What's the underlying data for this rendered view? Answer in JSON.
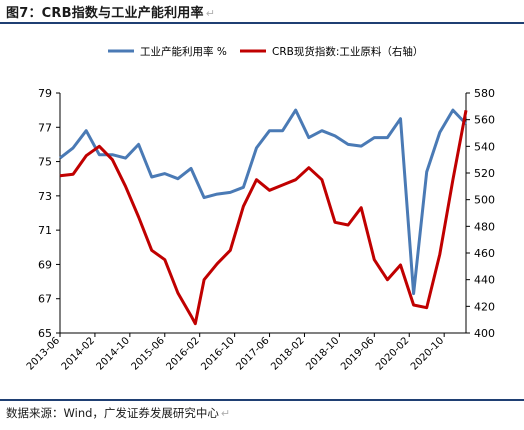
{
  "header": {
    "title": "图7：CRB指数与工业产能利用率",
    "return_mark": "↵"
  },
  "footer": {
    "source": "数据来源：Wind，广发证券发展研究中心",
    "return_mark": "↵"
  },
  "colors": {
    "series_left": "#4a7ab5",
    "series_right": "#c00000",
    "rule": "#1f3f73"
  },
  "chart_data": {
    "type": "line",
    "legend_placement": "top",
    "grid": false,
    "x_tick_labels": [
      "2013-06",
      "2014-02",
      "2014-10",
      "2015-06",
      "2016-02",
      "2016-10",
      "2017-06",
      "2018-02",
      "2018-10",
      "2019-06",
      "2020-02",
      "2020-10"
    ],
    "y_left": {
      "ylim": [
        65,
        79
      ],
      "ticks": [
        65,
        67,
        69,
        71,
        73,
        75,
        77,
        79
      ]
    },
    "y_right": {
      "ylim": [
        400,
        580
      ],
      "ticks": [
        400,
        420,
        440,
        460,
        480,
        500,
        520,
        540,
        560,
        580
      ]
    },
    "series": [
      {
        "name": "工业产能利用率 %",
        "axis": "left",
        "x": [
          "2013-06",
          "2013-09",
          "2013-12",
          "2014-03",
          "2014-06",
          "2014-09",
          "2014-12",
          "2015-03",
          "2015-06",
          "2015-09",
          "2015-12",
          "2016-03",
          "2016-06",
          "2016-09",
          "2016-12",
          "2017-03",
          "2017-06",
          "2017-09",
          "2017-12",
          "2018-03",
          "2018-06",
          "2018-09",
          "2018-12",
          "2019-03",
          "2019-06",
          "2019-09",
          "2019-12",
          "2020-03",
          "2020-06",
          "2020-09",
          "2020-12",
          "2021-03"
        ],
        "values": [
          75.2,
          75.8,
          76.8,
          75.4,
          75.4,
          75.2,
          76.0,
          74.1,
          74.3,
          74.0,
          74.6,
          72.9,
          73.1,
          73.2,
          73.5,
          75.8,
          76.8,
          76.8,
          78.0,
          76.4,
          76.8,
          76.5,
          76.0,
          75.9,
          76.4,
          76.4,
          77.5,
          67.3,
          74.4,
          76.7,
          78.0,
          77.2
        ]
      },
      {
        "name": "CRB现货指数:工业原料（右轴）",
        "axis": "right",
        "x": [
          "2013-06",
          "2013-09",
          "2013-12",
          "2014-03",
          "2014-06",
          "2014-09",
          "2014-12",
          "2015-03",
          "2015-06",
          "2015-09",
          "2015-12",
          "2016-01",
          "2016-03",
          "2016-06",
          "2016-09",
          "2016-12",
          "2017-03",
          "2017-06",
          "2017-09",
          "2017-12",
          "2018-03",
          "2018-06",
          "2018-09",
          "2018-12",
          "2019-03",
          "2019-06",
          "2019-09",
          "2019-12",
          "2020-03",
          "2020-06",
          "2020-09",
          "2020-12",
          "2021-03"
        ],
        "values": [
          518,
          519,
          533,
          540,
          530,
          510,
          487,
          462,
          455,
          430,
          413,
          407,
          440,
          452,
          462,
          495,
          515,
          507,
          511,
          515,
          524,
          515,
          483,
          481,
          494,
          455,
          440,
          451,
          421,
          419,
          459,
          515,
          567
        ]
      }
    ]
  }
}
